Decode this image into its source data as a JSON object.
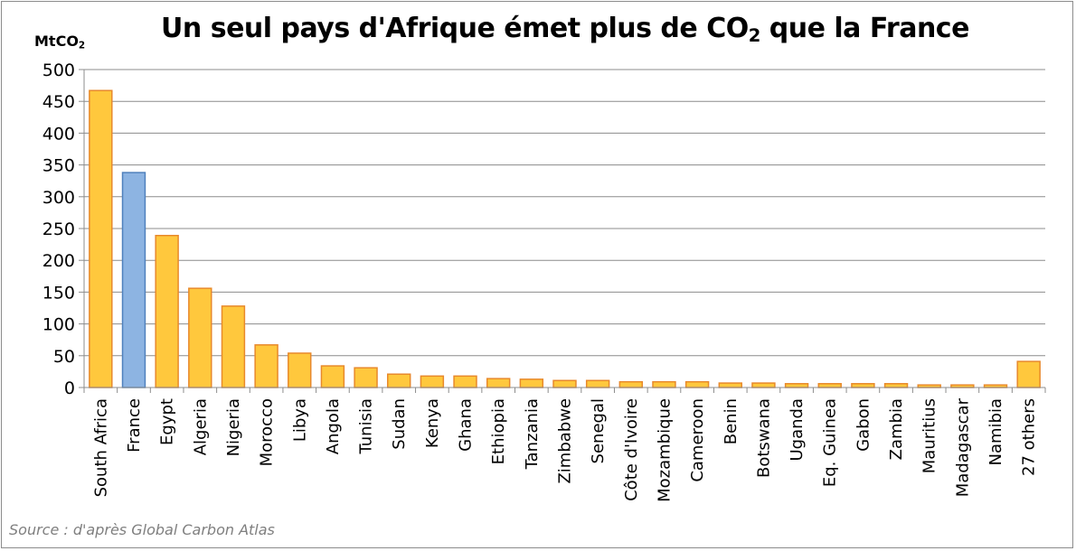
{
  "chart_data": {
    "type": "bar",
    "title": "Un seul pays d'Afrique émet plus de CO",
    "title_subscript": "2",
    "title_suffix": " que la France",
    "ylabel": "MtCO",
    "ylabel_subscript": "2",
    "xlabel": "",
    "source": "Source : d'après Global Carbon Atlas",
    "ylim": [
      0,
      500
    ],
    "yticks": [
      0,
      50,
      100,
      150,
      200,
      250,
      300,
      350,
      400,
      450,
      500
    ],
    "grid": true,
    "categories": [
      "South Africa",
      "France",
      "Egypt",
      "Algeria",
      "Nigeria",
      "Morocco",
      "Libya",
      "Angola",
      "Tunisia",
      "Sudan",
      "Kenya",
      "Ghana",
      "Ethiopia",
      "Tanzania",
      "Zimbabwe",
      "Senegal",
      "Côte d'Ivoire",
      "Mozambique",
      "Cameroon",
      "Benin",
      "Botswana",
      "Uganda",
      "Eq. Guinea",
      "Gabon",
      "Zambia",
      "Mauritius",
      "Madagascar",
      "Namibia",
      "27 others"
    ],
    "values": [
      467,
      338,
      239,
      156,
      128,
      67,
      54,
      34,
      31,
      21,
      18,
      18,
      14,
      13,
      11,
      11,
      9,
      9,
      9,
      7,
      7,
      6,
      6,
      6,
      6,
      4,
      4,
      4,
      41
    ],
    "colors": {
      "default_fill": "#ffc83d",
      "default_stroke": "#e8892b",
      "highlight_fill": "#8db4e2",
      "highlight_stroke": "#4f81bd",
      "grid": "#8c8c8c"
    },
    "highlight": [
      "France"
    ]
  }
}
